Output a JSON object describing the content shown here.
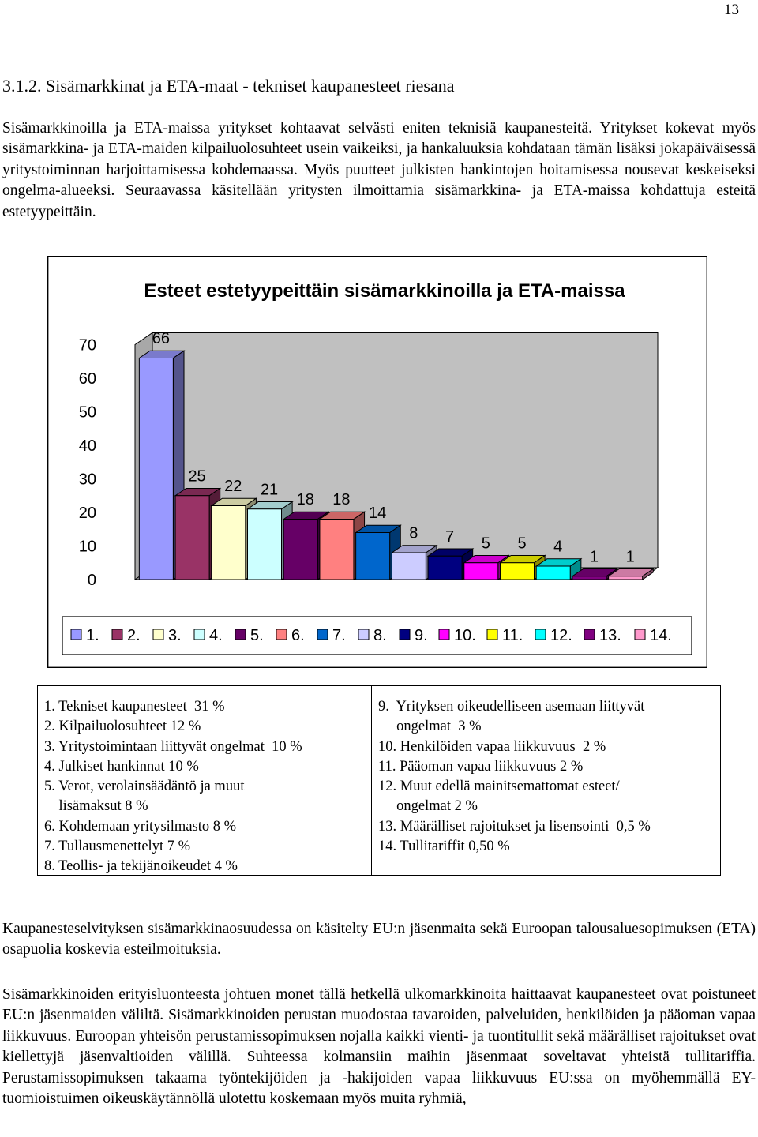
{
  "page_number": "13",
  "section_heading": "3.1.2.  Sisämarkkinat ja ETA-maat - tekniset kaupanesteet riesana",
  "paragraphs": {
    "intro": "Sisämarkkinoilla ja ETA-maissa yritykset kohtaavat selvästi eniten teknisiä kaupanesteitä. Yritykset kokevat myös sisämarkkina- ja ETA-maiden kilpailuolosuhteet usein vaikeiksi, ja hankaluuksia kohdataan tämän lisäksi jokapäiväisessä yritystoiminnan harjoittamisessa kohdemaassa. Myös puutteet julkisten hankintojen hoitamisessa nousevat keskeiseksi ongelma-alueeksi. Seuraavassa käsitellään yritysten ilmoittamia sisämarkkina- ja ETA-maissa kohdattuja esteitä estetyypeittäin.",
    "survey": "Kaupanesteselvityksen sisämarkkinaosuudessa on käsitelty EU:n jäsenmaita sekä Euroopan talousalue­sopimuksen (ETA) osapuolia koskevia esteilmoituksia.",
    "single_market": "Sisämarkkinoiden erityisluonteesta johtuen monet tällä hetkellä ulkomarkkinoita haittaavat kaupanesteet ovat poistuneet EU:n jäsenmaiden väliltä. Sisämarkkinoiden perustan muodostaa tavaroiden, palveluiden, henkilöiden ja pääoman vapaa liikkuvuus. Euroopan yhteisön perustamissopimuksen nojalla kaikki vienti- ja tuontitullit sekä määrälliset rajoitukset ovat kiellettyjä jäsenvaltioiden välillä. Suhteessa kolmansiin maihin jäsenmaat soveltavat yhteistä tullitariffia. Perustamissopimuksen takaama työntekijöiden ja -hakijoiden vapaa liikkuvuus EU:ssa on myöhemmällä EY-tuomioistuimen oikeuskäytännöllä ulotettu koskemaan myös muita ryhmiä,"
  },
  "chart_data": {
    "type": "bar",
    "title": "Esteet estetyypeittäin sisämarkkinoilla ja ETA-maissa",
    "categories": [
      "1.",
      "2.",
      "3.",
      "4.",
      "5.",
      "6.",
      "7.",
      "8.",
      "9.",
      "10.",
      "11.",
      "12.",
      "13.",
      "14."
    ],
    "values": [
      66,
      25,
      22,
      21,
      18,
      18,
      14,
      8,
      7,
      5,
      5,
      4,
      1,
      1
    ],
    "colors": [
      "#9999ff",
      "#993366",
      "#ffffcc",
      "#ccffff",
      "#660066",
      "#ff8080",
      "#0066cc",
      "#ccccff",
      "#000080",
      "#ff00ff",
      "#ffff00",
      "#00ffff",
      "#800080",
      "#ff99cc"
    ],
    "y_ticks": [
      "0",
      "10",
      "20",
      "30",
      "40",
      "50",
      "60",
      "70"
    ],
    "ylim": [
      0,
      70
    ],
    "style": "3d",
    "grid": false,
    "legend_position": "bottom"
  },
  "legend_table": {
    "left": [
      "1. Tekniset kaupanesteet  31 %",
      "2. Kilpailuolosuhteet 12 %",
      "3. Yritystoimintaan liittyvät ongelmat  10 %",
      "4. Julkiset hankinnat 10 %",
      "5. Verot, verolainsäädäntö ja muut",
      "    lisämaksut 8 %",
      "6. Kohdemaan yritysilmasto 8 %",
      "7. Tullausmenettelyt 7 %",
      "8. Teollis- ja tekijänoikeudet 4 %"
    ],
    "right": [
      "9.  Yrityksen oikeudelliseen asemaan liittyvät",
      "     ongelmat  3 %",
      "10. Henkilöiden vapaa liikkuvuus  2 %",
      "11. Pääoman vapaa liikkuvuus 2 %",
      "12. Muut edellä mainitsemattomat esteet/",
      "     ongelmat 2 %",
      "13. Määrälliset rajoitukset ja lisensointi  0,5 %",
      "14. Tullitariffit 0,50 %"
    ]
  }
}
